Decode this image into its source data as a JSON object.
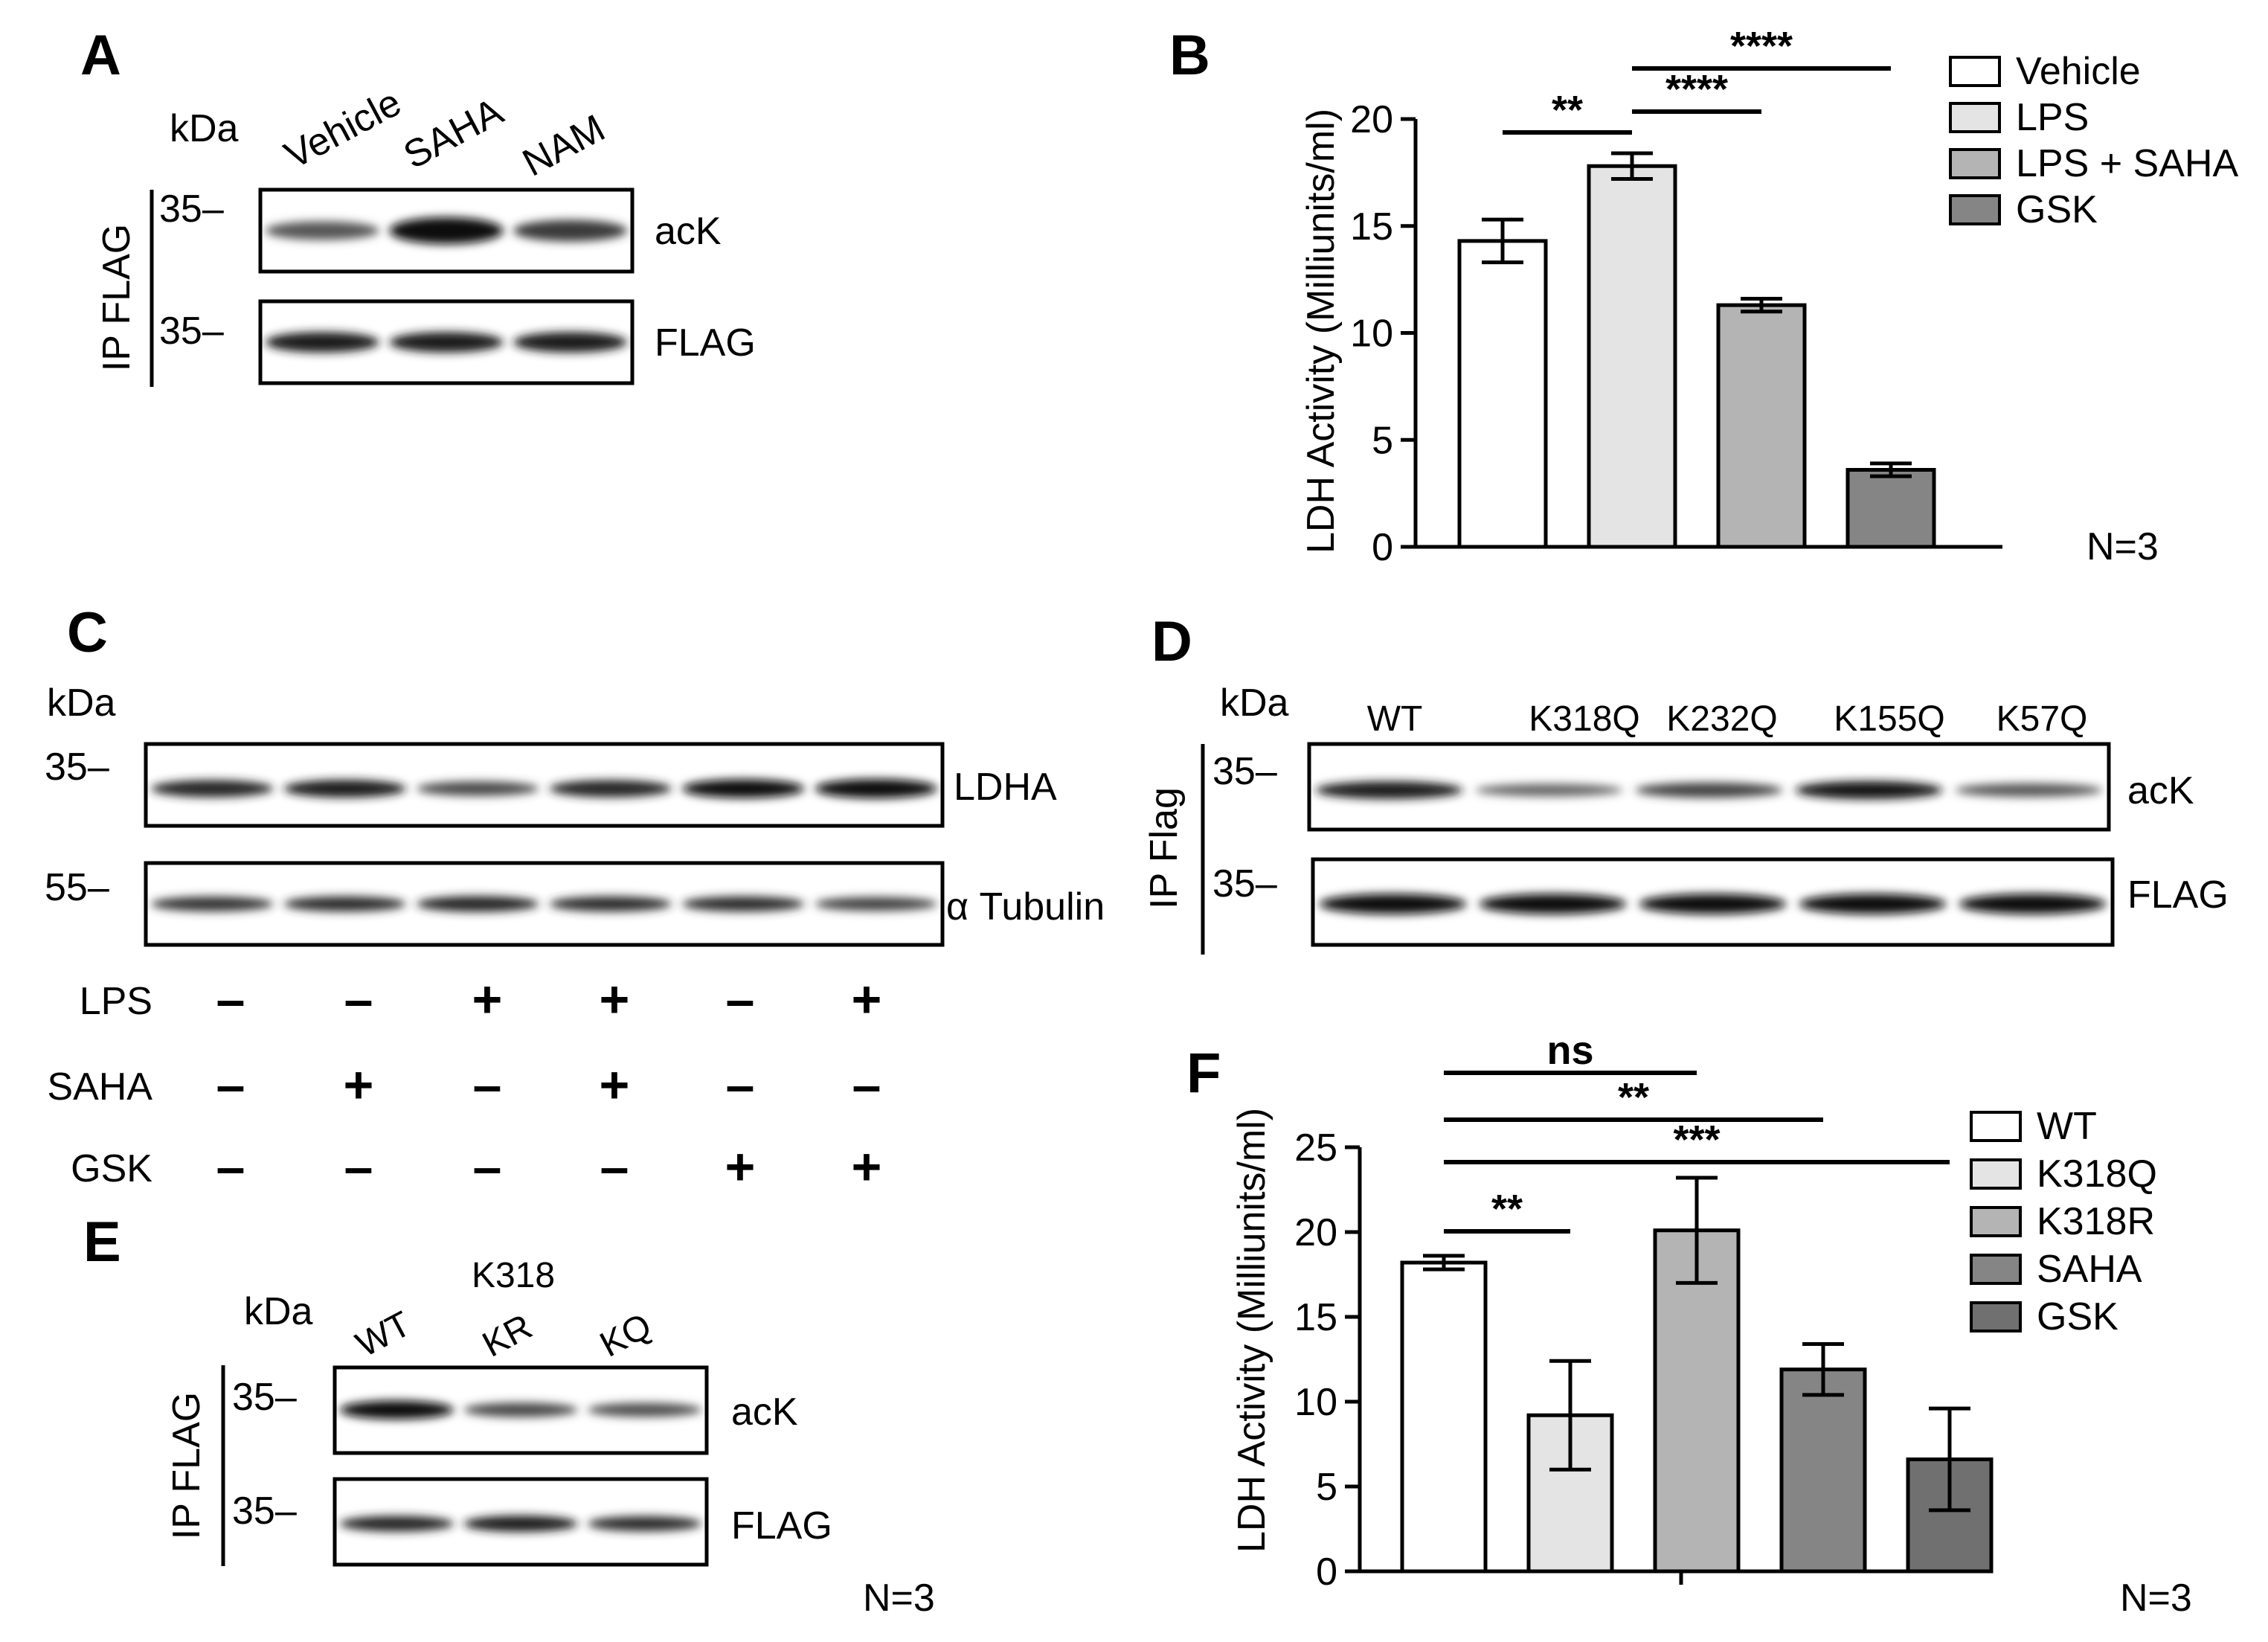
{
  "figure": {
    "panel_labels": [
      "A",
      "B",
      "C",
      "D",
      "E",
      "F"
    ]
  },
  "panel_a": {
    "kda_label": "kDa",
    "lanes": [
      "Vehicle",
      "SAHA",
      "NAM"
    ],
    "ip_label": "IP FLAG",
    "markers": [
      "35–",
      "35–"
    ],
    "blots": [
      {
        "name": "acK",
        "band_intensity": [
          0.45,
          1.0,
          0.65
        ]
      },
      {
        "name": "FLAG",
        "band_intensity": [
          0.85,
          0.85,
          0.85
        ]
      }
    ]
  },
  "panel_b": {
    "n_label": "N=3",
    "sig": [
      {
        "label": "**",
        "from": 0,
        "to": 1
      },
      {
        "label": "****",
        "from": 1,
        "to": 2
      },
      {
        "label": "****",
        "from": 1,
        "to": 3
      }
    ]
  },
  "panel_c": {
    "kda_label": "kDa",
    "markers": [
      "35–",
      "55–"
    ],
    "blots": [
      {
        "name": "LDHA",
        "band_intensity": [
          0.8,
          0.85,
          0.55,
          0.8,
          0.95,
          1.0
        ]
      },
      {
        "name": "α Tubulin",
        "band_intensity": [
          0.7,
          0.75,
          0.8,
          0.75,
          0.75,
          0.6
        ]
      }
    ],
    "conditions": [
      {
        "name": "LPS",
        "values": [
          "–",
          "–",
          "+",
          "+",
          "–",
          "+"
        ]
      },
      {
        "name": "SAHA",
        "values": [
          "–",
          "+",
          "–",
          "+",
          "–",
          "–"
        ]
      },
      {
        "name": "GSK",
        "values": [
          "–",
          "–",
          "–",
          "–",
          "+",
          "+"
        ]
      }
    ]
  },
  "panel_d": {
    "kda_label": "kDa",
    "lanes": [
      "WT",
      "K318Q",
      "K232Q",
      "K155Q",
      "K57Q"
    ],
    "ip_label": "IP Flag",
    "markers": [
      "35–",
      "35–"
    ],
    "blots": [
      {
        "name": "acK",
        "band_intensity": [
          0.85,
          0.35,
          0.6,
          0.9,
          0.45
        ]
      },
      {
        "name": "FLAG",
        "band_intensity": [
          0.95,
          0.95,
          0.95,
          0.95,
          0.95
        ]
      }
    ]
  },
  "panel_e": {
    "kda_label": "kDa",
    "group_label": "K318",
    "lanes": [
      "WT",
      "KR",
      "KQ"
    ],
    "ip_label": "IP FLAG",
    "markers": [
      "35–",
      "35–"
    ],
    "blots": [
      {
        "name": "acK",
        "band_intensity": [
          0.95,
          0.55,
          0.5
        ]
      },
      {
        "name": "FLAG",
        "band_intensity": [
          0.8,
          0.85,
          0.75
        ]
      }
    ],
    "n_label": "N=3"
  },
  "panel_f": {
    "n_label": "N=3",
    "sig": [
      {
        "label": "**",
        "from": 0,
        "to": 1
      },
      {
        "label": "ns",
        "from": 0,
        "to": 2
      },
      {
        "label": "**",
        "from": 0,
        "to": 3
      },
      {
        "label": "***",
        "from": 0,
        "to": 4
      }
    ]
  },
  "chart_data": [
    {
      "id": "panel_b",
      "type": "bar",
      "categories": [
        "Vehicle",
        "LPS",
        "LPS + SAHA",
        "GSK"
      ],
      "values": [
        14.3,
        17.8,
        11.3,
        3.6
      ],
      "errors": [
        1.0,
        0.6,
        0.3,
        0.3
      ],
      "colors": [
        "#ffffff",
        "#e4e4e4",
        "#b4b4b4",
        "#858585"
      ],
      "ylabel": "LDH Activity (Milliunits/ml)",
      "ylim": [
        0,
        20
      ],
      "yticks": [
        0,
        5,
        10,
        15,
        20
      ],
      "legend": [
        "Vehicle",
        "LPS",
        "LPS + SAHA",
        "GSK"
      ],
      "legend_position": "top-right"
    },
    {
      "id": "panel_f",
      "type": "bar",
      "categories": [
        "WT",
        "K318Q",
        "K318R",
        "SAHA",
        "GSK"
      ],
      "values": [
        18.2,
        9.2,
        20.1,
        11.9,
        6.6
      ],
      "errors": [
        0.4,
        3.2,
        3.1,
        1.5,
        3.0
      ],
      "colors": [
        "#ffffff",
        "#e4e4e4",
        "#b4b4b4",
        "#858585",
        "#707070"
      ],
      "ylabel": "LDH Activity (Milliunits/ml)",
      "ylim": [
        0,
        25
      ],
      "yticks": [
        0,
        5,
        10,
        15,
        20,
        25
      ],
      "legend": [
        "WT",
        "K318Q",
        "K318R",
        "SAHA",
        "GSK"
      ],
      "legend_position": "top-right"
    }
  ]
}
